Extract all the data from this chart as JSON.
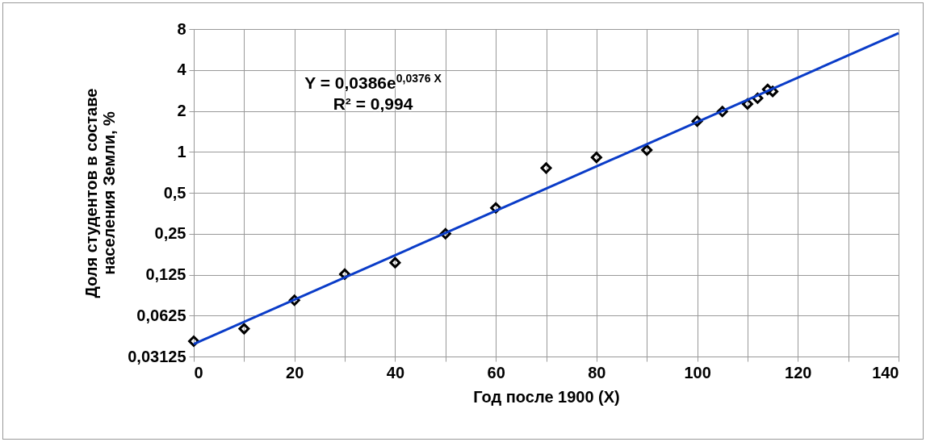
{
  "chart_data": {
    "type": "scatter",
    "xlabel": "Год после 1900 (X)",
    "ylabel": "Доля студентов в составе\nнаселения Земли, %",
    "x": [
      0,
      10,
      20,
      30,
      40,
      50,
      60,
      70,
      80,
      90,
      100,
      105,
      110,
      112,
      114,
      115
    ],
    "series": [
      {
        "color": "#000000",
        "marker": "diamond",
        "values": [
          0.0405,
          0.05,
          0.081,
          0.126,
          0.153,
          0.25,
          0.387,
          0.76,
          0.91,
          1.03,
          1.68,
          1.98,
          2.25,
          2.48,
          2.88,
          2.78
        ]
      },
      {
        "type": "line",
        "color": "#0a3cc8",
        "x": [
          0,
          140
        ],
        "values": [
          0.0386,
          7.46
        ]
      }
    ],
    "xlim": [
      0,
      140
    ],
    "xticks": [
      0,
      {
        "value": 10,
        "label": null
      },
      20,
      {
        "value": 30,
        "label": null
      },
      40,
      {
        "value": 50,
        "label": null
      },
      60,
      {
        "value": 70,
        "label": null
      },
      80,
      {
        "value": 90,
        "label": null
      },
      100,
      {
        "value": 110,
        "label": null
      },
      120,
      {
        "value": 130,
        "label": null
      },
      140
    ],
    "ylim": [
      0.03125,
      8
    ],
    "yticks": [
      {
        "value": 0.03125,
        "label": "0,03125"
      },
      {
        "value": 0.0625,
        "label": "0,0625"
      },
      {
        "value": 0.125,
        "label": "0,125"
      },
      {
        "value": 0.25,
        "label": "0,25"
      },
      {
        "value": 0.5,
        "label": "0,5"
      },
      1,
      2,
      4,
      8
    ],
    "log": "y",
    "grid": true,
    "annotations": [
      "Y = 0,0386e$^{0,0376 X}$",
      "R² = 0,994"
    ]
  }
}
